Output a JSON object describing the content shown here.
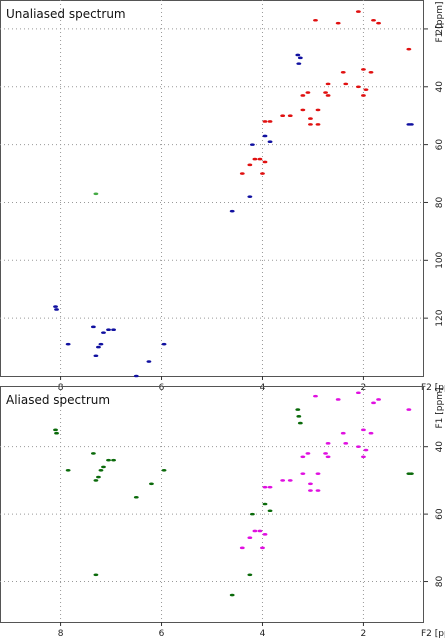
{
  "chart_data": [
    {
      "type": "scatter",
      "title": "Unaliased spectrum",
      "xlabel": "F2 [ppm]",
      "ylabel": "F1 [ppm]",
      "xlim": [
        9.2,
        0.8
      ],
      "ylim": [
        140,
        10
      ],
      "x_ticks": [
        8,
        6,
        4,
        2
      ],
      "y_ticks": [
        20,
        40,
        60,
        80,
        100,
        120
      ],
      "grid": true,
      "series": [
        {
          "color": "#1010a0",
          "points": [
            [
              8.1,
              116
            ],
            [
              8.08,
              117
            ],
            [
              7.85,
              129
            ],
            [
              7.35,
              123
            ],
            [
              7.3,
              133
            ],
            [
              7.25,
              130
            ],
            [
              7.2,
              129
            ],
            [
              7.15,
              125
            ],
            [
              7.05,
              124
            ],
            [
              6.95,
              124
            ],
            [
              6.5,
              140
            ],
            [
              6.25,
              135
            ],
            [
              5.95,
              129
            ],
            [
              4.6,
              83
            ],
            [
              4.25,
              78
            ],
            [
              4.2,
              60
            ],
            [
              3.95,
              57
            ],
            [
              3.85,
              59
            ],
            [
              3.3,
              29
            ],
            [
              3.28,
              32
            ],
            [
              3.25,
              30
            ],
            [
              1.05,
              53
            ],
            [
              1.1,
              53
            ]
          ]
        },
        {
          "color": "#e01010",
          "points": [
            [
              2.95,
              17
            ],
            [
              2.1,
              14
            ],
            [
              2.5,
              18
            ],
            [
              1.8,
              17
            ],
            [
              1.7,
              18
            ],
            [
              1.1,
              27
            ],
            [
              2.4,
              35
            ],
            [
              2.0,
              34
            ],
            [
              1.85,
              35
            ],
            [
              2.7,
              39
            ],
            [
              2.35,
              39
            ],
            [
              2.1,
              40
            ],
            [
              1.95,
              41
            ],
            [
              3.2,
              43
            ],
            [
              3.1,
              42
            ],
            [
              2.75,
              42
            ],
            [
              2.7,
              43
            ],
            [
              2.0,
              43
            ],
            [
              3.2,
              48
            ],
            [
              2.9,
              48
            ],
            [
              3.6,
              50
            ],
            [
              3.45,
              50
            ],
            [
              3.05,
              51
            ],
            [
              2.9,
              53
            ],
            [
              3.05,
              53
            ],
            [
              3.95,
              52
            ],
            [
              3.85,
              52
            ],
            [
              4.15,
              65
            ],
            [
              4.05,
              65
            ],
            [
              3.95,
              66
            ],
            [
              4.25,
              67
            ],
            [
              4.0,
              70
            ],
            [
              4.4,
              70
            ]
          ]
        },
        {
          "color": "#44aa44",
          "points": [
            [
              7.3,
              77
            ]
          ]
        }
      ]
    },
    {
      "type": "scatter",
      "title": "Aliased spectrum",
      "xlabel": "F2 [ppm]",
      "ylabel": "F1 [ppm]",
      "xlim": [
        9.2,
        0.8
      ],
      "ylim": [
        92,
        22
      ],
      "x_ticks": [
        8,
        6,
        4,
        2
      ],
      "y_ticks": [
        40,
        60,
        80
      ],
      "grid": true,
      "series": [
        {
          "color": "#0a6a0a",
          "points": [
            [
              8.1,
              35
            ],
            [
              8.08,
              36
            ],
            [
              7.85,
              47
            ],
            [
              7.35,
              42
            ],
            [
              7.3,
              50
            ],
            [
              7.25,
              49
            ],
            [
              7.2,
              47
            ],
            [
              7.15,
              46
            ],
            [
              7.05,
              44
            ],
            [
              6.95,
              44
            ],
            [
              6.5,
              55
            ],
            [
              6.2,
              51
            ],
            [
              5.95,
              47
            ],
            [
              7.3,
              78
            ],
            [
              4.6,
              84
            ],
            [
              4.25,
              78
            ],
            [
              4.2,
              60
            ],
            [
              3.95,
              57
            ],
            [
              3.85,
              59
            ],
            [
              3.3,
              29
            ],
            [
              3.28,
              31
            ],
            [
              3.25,
              33
            ],
            [
              1.05,
              48
            ],
            [
              1.1,
              48
            ]
          ]
        },
        {
          "color": "#e010e0",
          "points": [
            [
              2.95,
              25
            ],
            [
              2.1,
              24
            ],
            [
              2.5,
              26
            ],
            [
              1.8,
              27
            ],
            [
              1.7,
              26
            ],
            [
              1.1,
              29
            ],
            [
              2.4,
              36
            ],
            [
              2.0,
              35
            ],
            [
              1.85,
              36
            ],
            [
              2.7,
              39
            ],
            [
              2.35,
              39
            ],
            [
              2.1,
              40
            ],
            [
              1.95,
              41
            ],
            [
              3.2,
              43
            ],
            [
              3.1,
              42
            ],
            [
              2.75,
              42
            ],
            [
              2.7,
              43
            ],
            [
              2.0,
              43
            ],
            [
              3.2,
              48
            ],
            [
              2.9,
              48
            ],
            [
              3.6,
              50
            ],
            [
              3.45,
              50
            ],
            [
              3.05,
              51
            ],
            [
              2.9,
              53
            ],
            [
              3.05,
              53
            ],
            [
              3.95,
              52
            ],
            [
              3.85,
              52
            ],
            [
              4.15,
              65
            ],
            [
              4.05,
              65
            ],
            [
              3.95,
              66
            ],
            [
              4.25,
              67
            ],
            [
              4.0,
              70
            ],
            [
              4.4,
              70
            ]
          ]
        }
      ]
    }
  ]
}
